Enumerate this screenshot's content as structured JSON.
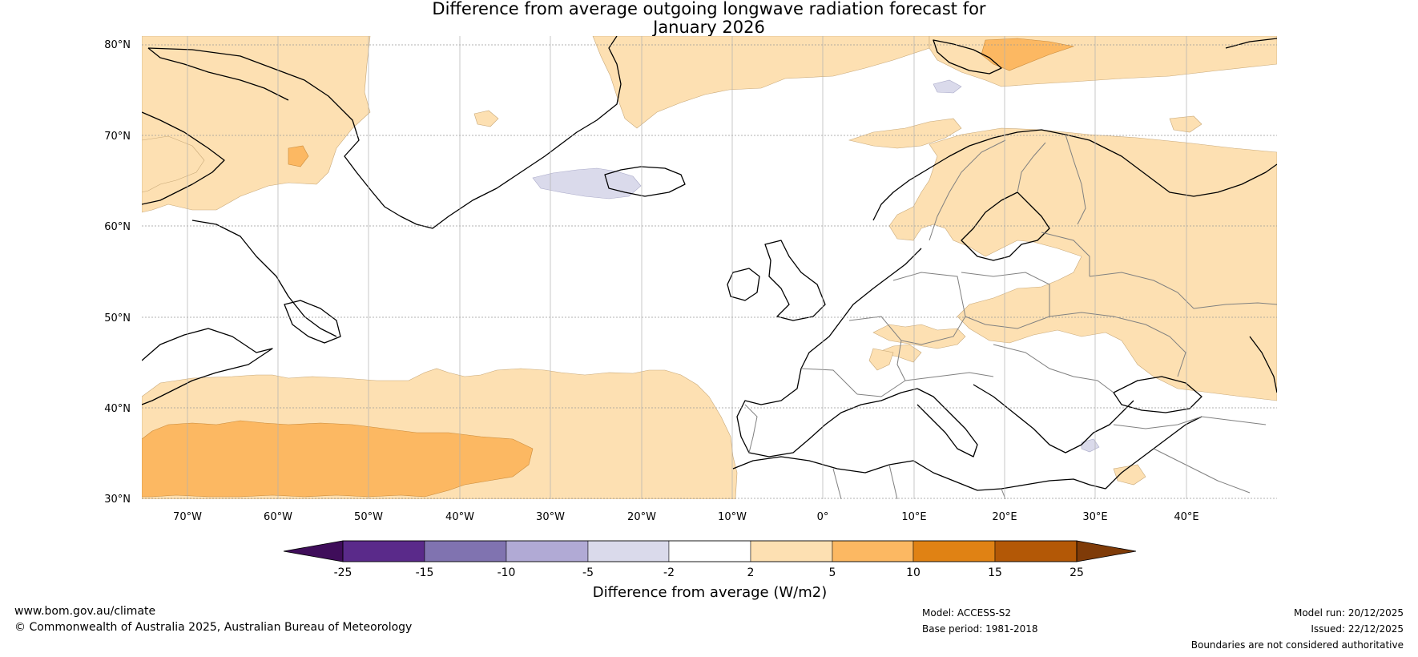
{
  "title": {
    "line1": "Difference from average outgoing longwave radiation forecast for",
    "line2": "January 2026"
  },
  "map": {
    "lat_labels": [
      "80°N",
      "70°N",
      "60°N",
      "50°N",
      "40°N",
      "30°N"
    ],
    "lon_labels": [
      "70°W",
      "60°W",
      "50°W",
      "40°W",
      "30°W",
      "20°W",
      "10°W",
      "0°",
      "10°E",
      "20°E",
      "30°E",
      "40°E"
    ],
    "lat_values": [
      80,
      70,
      60,
      50,
      40,
      30
    ],
    "lon_values": [
      -70,
      -60,
      -50,
      -40,
      -30,
      -20,
      -10,
      0,
      10,
      20,
      30,
      40
    ],
    "extent": {
      "lon_min": -75,
      "lon_max": 50,
      "lat_min": 30,
      "lat_max": 81
    }
  },
  "colorbar": {
    "ticks": [
      "-25",
      "-15",
      "-10",
      "-5",
      "-2",
      "2",
      "5",
      "10",
      "15",
      "25"
    ],
    "colors": [
      "#3f0d5a",
      "#5a2a8a",
      "#8073b0",
      "#b1aad5",
      "#dadaeb",
      "#ffffff",
      "#fde0b2",
      "#fcb862",
      "#e08214",
      "#b35806",
      "#7f3b08"
    ],
    "label": "Difference from average (W/m2)"
  },
  "footer": {
    "website": "www.bom.gov.au/climate",
    "copyright": "© Commonwealth of Australia 2025, Australian Bureau of Meteorology",
    "model": "Model: ACCESS-S2",
    "base_period": "Base period: 1981-2018",
    "model_run": "Model run: 20/12/2025",
    "issued": "Issued: 22/12/2025",
    "disclaimer": "Boundaries are not considered authoritative"
  }
}
